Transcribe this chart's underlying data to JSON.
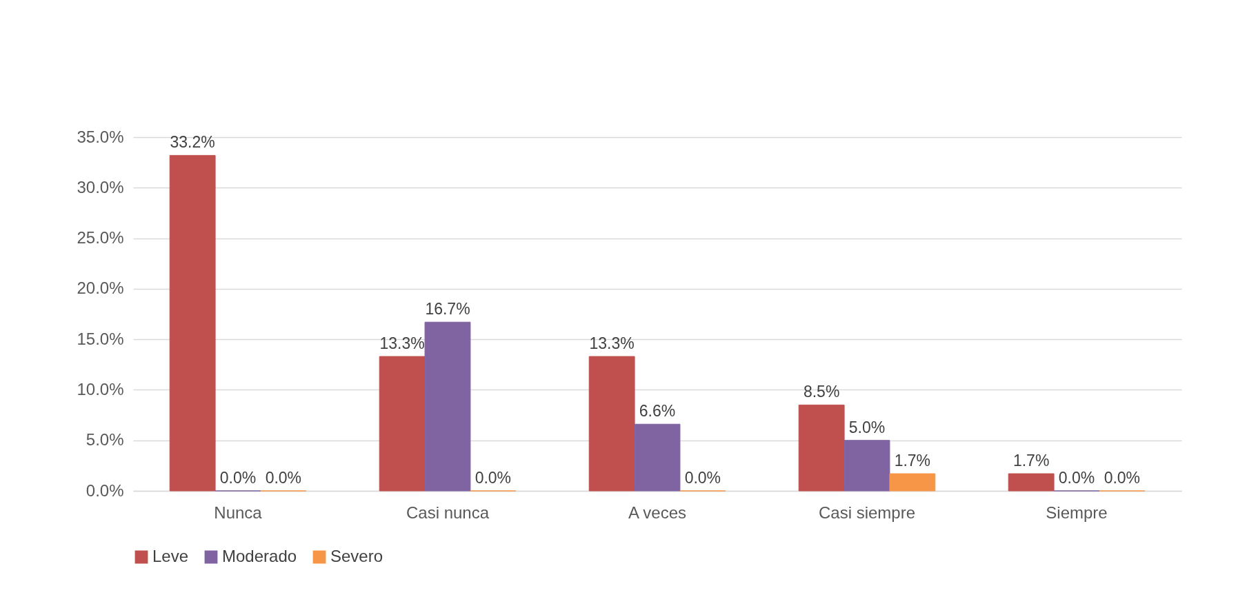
{
  "chart_data": {
    "type": "bar",
    "categories": [
      "Nunca",
      "Casi nunca",
      "A veces",
      "Casi siempre",
      "Siempre"
    ],
    "series": [
      {
        "name": "Leve",
        "color": "#c0504d",
        "values": [
          33.2,
          13.3,
          13.3,
          8.5,
          1.7
        ],
        "value_labels": [
          "33.2%",
          "13.3%",
          "13.3%",
          "8.5%",
          "1.7%"
        ]
      },
      {
        "name": "Moderado",
        "color": "#8064a2",
        "values": [
          0.0,
          16.7,
          6.6,
          5.0,
          0.0
        ],
        "value_labels": [
          "0.0%",
          "16.7%",
          "6.6%",
          "5.0%",
          "0.0%"
        ]
      },
      {
        "name": "Severo",
        "color": "#f79646",
        "values": [
          0.0,
          0.0,
          0.0,
          1.7,
          0.0
        ],
        "value_labels": [
          "0.0%",
          "0.0%",
          "0.0%",
          "1.7%",
          "0.0%"
        ]
      }
    ],
    "ylim": [
      0,
      35
    ],
    "yticks": [
      {
        "value": 0,
        "label": "0.0%"
      },
      {
        "value": 5,
        "label": "5.0%"
      },
      {
        "value": 10,
        "label": "10.0%"
      },
      {
        "value": 15,
        "label": "15.0%"
      },
      {
        "value": 20,
        "label": "20.0%"
      },
      {
        "value": 25,
        "label": "25.0%"
      },
      {
        "value": 30,
        "label": "30.0%"
      },
      {
        "value": 35,
        "label": "35.0%"
      }
    ],
    "grid": "y",
    "legend": "bottom"
  }
}
